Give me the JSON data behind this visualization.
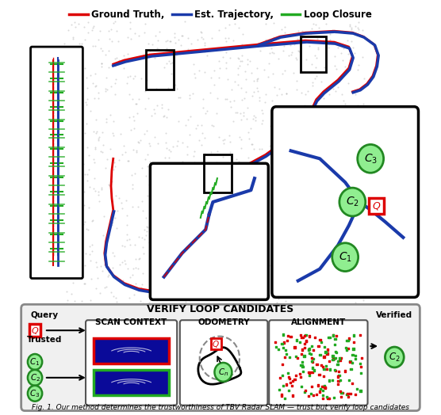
{
  "title": "",
  "legend_items": [
    {
      "label": "Ground Truth,",
      "color": "#dd0000",
      "lw": 2.5
    },
    {
      "label": "Est. Trajectory,",
      "color": "#1a3aaa",
      "lw": 2.5
    },
    {
      "label": "Loop Closure",
      "color": "#22aa22",
      "lw": 2.5
    }
  ],
  "bg_color": "#ffffff",
  "main_bg": "#e8e8e8",
  "caption": "Fig. 1. Our method determines the trustworthiness of TBV Radar SLAM — trust but verify loop candidates",
  "colors": {
    "red": "#dd0000",
    "blue": "#1a3aaa",
    "green": "#22aa22",
    "dark": "#111111",
    "light_gray": "#cccccc",
    "mid_gray": "#888888",
    "panel_bg": "#f5f5f5",
    "scan_blue": "#0a0a99",
    "query_fill": "#ffffff",
    "c_fill": "#90ee90"
  }
}
